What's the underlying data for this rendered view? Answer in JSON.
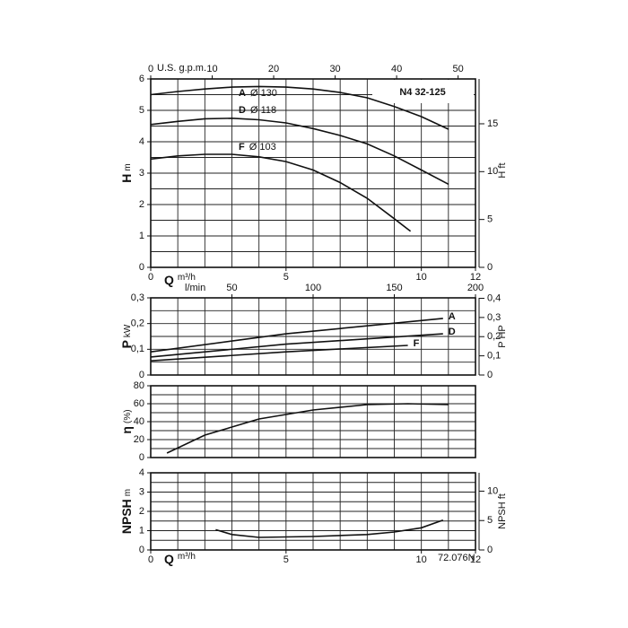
{
  "chart_data": [
    {
      "type": "line",
      "title": "N4 32-125",
      "ylabel": "H",
      "yunit": "m",
      "xlabel": "Q",
      "xunit": "m³/h",
      "x2label": "U.S. g.p.m.",
      "y2label": "H ft",
      "xlim": [
        0,
        12
      ],
      "xticks": [
        0,
        5,
        10,
        12
      ],
      "xgrid": [
        1,
        2,
        3,
        4,
        5,
        6,
        7,
        8,
        9,
        10,
        11
      ],
      "ylim": [
        0,
        6
      ],
      "yticks": [
        0,
        1,
        2,
        3,
        4,
        5,
        6
      ],
      "ygrid": [
        0.5,
        1,
        1.5,
        2,
        2.5,
        3,
        3.5,
        4,
        4.5,
        5,
        5.5
      ],
      "x2lim": [
        0,
        52.83
      ],
      "x2ticks": [
        0,
        10,
        20,
        30,
        40,
        50
      ],
      "y2lim": [
        0,
        19.685
      ],
      "y2ticks": [
        0,
        5,
        10,
        15
      ],
      "color": "#111111",
      "series": [
        {
          "name": "A",
          "diameter": "Ø 130",
          "x": [
            0,
            1,
            2,
            3,
            4,
            5,
            6,
            7,
            8,
            9,
            10,
            11
          ],
          "values": [
            5.5,
            5.6,
            5.68,
            5.74,
            5.76,
            5.74,
            5.68,
            5.57,
            5.4,
            5.12,
            4.8,
            4.4
          ]
        },
        {
          "name": "D",
          "diameter": "Ø 118",
          "x": [
            0,
            1,
            2,
            3,
            4,
            5,
            6,
            7,
            8,
            9,
            10,
            11
          ],
          "values": [
            4.55,
            4.65,
            4.73,
            4.75,
            4.7,
            4.6,
            4.42,
            4.2,
            3.93,
            3.55,
            3.1,
            2.65
          ]
        },
        {
          "name": "F",
          "diameter": "Ø 103",
          "x": [
            0,
            1,
            2,
            3,
            4,
            5,
            6,
            7,
            8,
            9,
            9.6
          ],
          "values": [
            3.45,
            3.55,
            3.6,
            3.6,
            3.52,
            3.37,
            3.1,
            2.7,
            2.2,
            1.55,
            1.15
          ]
        }
      ]
    },
    {
      "type": "line",
      "ylabel": "P",
      "yunit": "kW",
      "x2label": "l/min",
      "y2label": "P HP",
      "xlim": [
        0,
        12
      ],
      "xgrid": [
        1,
        2,
        3,
        4,
        5,
        6,
        7,
        8,
        9,
        10,
        11
      ],
      "ylim": [
        0,
        0.3
      ],
      "yticks": [
        0,
        {
          "value": 0.1,
          "label": "0,1"
        },
        {
          "value": 0.2,
          "label": "0,2"
        },
        {
          "value": 0.3,
          "label": "0,3"
        }
      ],
      "ygrid": [
        0.05,
        0.1,
        0.15,
        0.2,
        0.25
      ],
      "x2lim": [
        0,
        200
      ],
      "x2ticks": [
        50,
        100,
        150,
        200
      ],
      "y2lim": [
        0,
        0.4023
      ],
      "y2ticks": [
        0,
        {
          "value": 0.1,
          "label": "0,1"
        },
        {
          "value": 0.2,
          "label": "0,2"
        },
        {
          "value": 0.3,
          "label": "0,3"
        },
        {
          "value": 0.4,
          "label": "0,4"
        }
      ],
      "color": "#111111",
      "series": [
        {
          "name": "A",
          "x": [
            0,
            5,
            10.8
          ],
          "values": [
            0.09,
            0.16,
            0.22
          ]
        },
        {
          "name": "D",
          "x": [
            0,
            5,
            10.8
          ],
          "values": [
            0.07,
            0.12,
            0.16
          ]
        },
        {
          "name": "F",
          "x": [
            0,
            5,
            9.5
          ],
          "values": [
            0.055,
            0.09,
            0.115
          ]
        }
      ]
    },
    {
      "type": "line",
      "ylabel": "η",
      "yunit": "(%)",
      "xlim": [
        0,
        12
      ],
      "xgrid": [
        1,
        2,
        3,
        4,
        5,
        6,
        7,
        8,
        9,
        10,
        11
      ],
      "ylim": [
        0,
        80
      ],
      "yticks": [
        0,
        20,
        40,
        60,
        80
      ],
      "ygrid": [
        10,
        20,
        30,
        40,
        50,
        60,
        70
      ],
      "color": "#111111",
      "series": [
        {
          "x": [
            0.6,
            2,
            4,
            6,
            8,
            9.5,
            11
          ],
          "values": [
            5,
            25,
            43,
            53,
            59,
            60,
            59
          ]
        }
      ]
    },
    {
      "type": "line",
      "ylabel": "NPSH",
      "yunit": "m",
      "xlabel": "Q",
      "xunit": "m³/h",
      "y2label": "NPSH ft",
      "note": "72.076N",
      "xlim": [
        0,
        12
      ],
      "xticks": [
        0,
        5,
        10,
        12
      ],
      "xgrid": [
        1,
        2,
        3,
        4,
        5,
        6,
        7,
        8,
        9,
        10,
        11
      ],
      "ylim": [
        0,
        4
      ],
      "yticks": [
        0,
        1,
        2,
        3,
        4
      ],
      "ygrid": [
        0.5,
        1,
        1.5,
        2,
        2.5,
        3,
        3.5
      ],
      "y2lim": [
        0,
        13.123
      ],
      "y2ticks": [
        0,
        5,
        10
      ],
      "color": "#111111",
      "series": [
        {
          "x": [
            2.4,
            3,
            4,
            6,
            8,
            9,
            10,
            10.8
          ],
          "values": [
            1.05,
            0.8,
            0.65,
            0.7,
            0.8,
            0.93,
            1.15,
            1.55
          ]
        }
      ]
    }
  ]
}
